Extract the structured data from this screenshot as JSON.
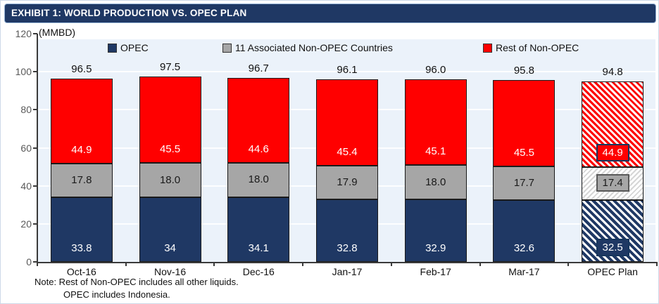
{
  "title_bar": {
    "label": "EXHIBIT 1: WORLD PRODUCTION VS. OPEC PLAN",
    "bg_color": "#1F3864",
    "text_color": "#FFFFFF"
  },
  "units_label": "(MMBD)",
  "note": {
    "line1": "Note: Rest of Non-OPEC includes all other liquids.",
    "line2": "OPEC includes Indonesia."
  },
  "chart_data": {
    "type": "bar",
    "stacked": true,
    "categories": [
      "Oct-16",
      "Nov-16",
      "Dec-16",
      "Jan-17",
      "Feb-17",
      "Mar-17",
      "OPEC Plan"
    ],
    "series": [
      {
        "name": "OPEC",
        "color": "#1F3864",
        "label_text_color": "#FFFFFF",
        "values": [
          33.8,
          34,
          34.1,
          32.8,
          32.9,
          32.6,
          32.5
        ],
        "labels": [
          "33.8",
          "34",
          "34.1",
          "32.8",
          "32.9",
          "32.6",
          "32.5"
        ]
      },
      {
        "name": "11 Associated Non-OPEC Countries",
        "color": "#A6A6A6",
        "label_text_color": "#1a1a1a",
        "values": [
          17.8,
          18,
          18,
          17.9,
          18,
          17.7,
          17.4
        ],
        "labels": [
          "17.8",
          "18.0",
          "18.0",
          "17.9",
          "18.0",
          "17.7",
          "17.4"
        ]
      },
      {
        "name": "Rest of Non-OPEC",
        "color": "#FF0000",
        "label_text_color": "#FFFFFF",
        "values": [
          44.9,
          45.5,
          44.6,
          45.4,
          45.1,
          45.5,
          44.9
        ],
        "labels": [
          "44.9",
          "45.5",
          "44.6",
          "45.4",
          "45.1",
          "45.5",
          "44.9"
        ]
      }
    ],
    "totals": [
      "96.5",
      "97.5",
      "96.7",
      "96.1",
      "96.0",
      "95.8",
      "94.8"
    ],
    "y_ticks": [
      0,
      20,
      40,
      60,
      80,
      100,
      120
    ],
    "ylim": [
      0,
      120
    ],
    "grid": true,
    "legend_position": "top",
    "hatched_category": "OPEC Plan",
    "plot_bg_color": "#EBF2FA"
  }
}
